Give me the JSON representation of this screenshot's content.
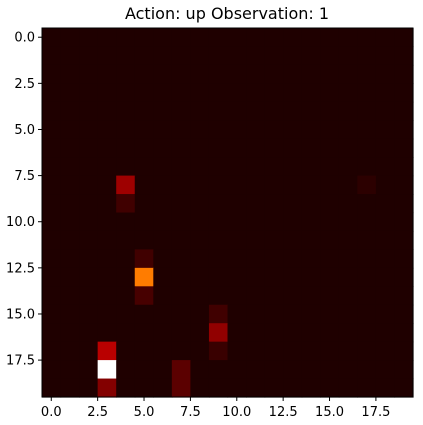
{
  "chart_data": {
    "type": "heatmap",
    "title": "Action: up Observation: 1",
    "xlabel": "",
    "ylabel": "",
    "rows": 20,
    "cols": 20,
    "colormap": "hot",
    "background_value": 0.03,
    "xlim": [
      -0.5,
      19.5
    ],
    "ylim": [
      19.5,
      -0.5
    ],
    "x_ticks": [
      0.0,
      2.5,
      5.0,
      7.5,
      10.0,
      12.5,
      15.0,
      17.5
    ],
    "x_tick_labels": [
      "0.0",
      "2.5",
      "5.0",
      "7.5",
      "10.0",
      "12.5",
      "15.0",
      "17.5"
    ],
    "y_ticks": [
      0.0,
      2.5,
      5.0,
      7.5,
      10.0,
      12.5,
      15.0,
      17.5
    ],
    "y_tick_labels": [
      "0.0",
      "2.5",
      "5.0",
      "7.5",
      "10.0",
      "12.5",
      "15.0",
      "17.5"
    ],
    "cells": [
      {
        "row": 8,
        "col": 4,
        "value": 0.22
      },
      {
        "row": 9,
        "col": 4,
        "value": 0.08
      },
      {
        "row": 12,
        "col": 5,
        "value": 0.08
      },
      {
        "row": 13,
        "col": 5,
        "value": 0.55
      },
      {
        "row": 14,
        "col": 5,
        "value": 0.09
      },
      {
        "row": 15,
        "col": 9,
        "value": 0.08
      },
      {
        "row": 16,
        "col": 9,
        "value": 0.2
      },
      {
        "row": 17,
        "col": 9,
        "value": 0.07
      },
      {
        "row": 17,
        "col": 3,
        "value": 0.26
      },
      {
        "row": 18,
        "col": 3,
        "value": 1.0
      },
      {
        "row": 19,
        "col": 3,
        "value": 0.18
      },
      {
        "row": 18,
        "col": 7,
        "value": 0.12
      },
      {
        "row": 19,
        "col": 7,
        "value": 0.12
      },
      {
        "row": 8,
        "col": 17,
        "value": 0.05
      }
    ]
  }
}
